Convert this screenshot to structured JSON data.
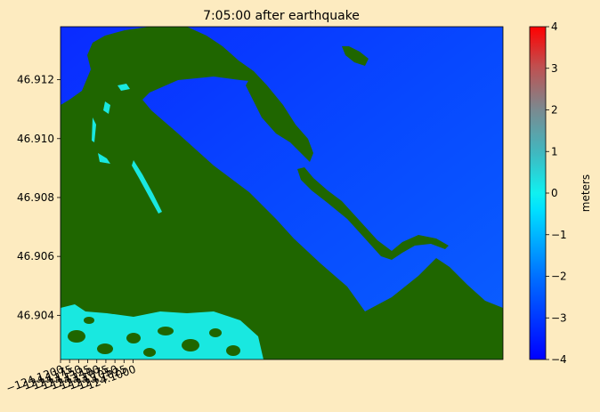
{
  "chart_data": {
    "type": "heatmap",
    "title": "7:05:00 after earthquake",
    "xlabel": "",
    "ylabel": "",
    "xlim": [
      -124.12,
      -123.998
    ],
    "ylim": [
      46.9025,
      46.9138
    ],
    "x_ticks": [
      -124.12,
      -124.1175,
      -124.115,
      -124.1125,
      -124.11,
      -124.1075,
      -124.105,
      -124.1025,
      -124.1
    ],
    "x_tick_labels": [
      "−124.1200",
      "−124.1175",
      "−124.1150",
      "−124.1125",
      "−124.1100",
      "−124.1075",
      "−124.1050",
      "−124.1025",
      "−124.1000"
    ],
    "y_ticks": [
      46.904,
      46.906,
      46.908,
      46.91,
      46.912
    ],
    "y_tick_labels": [
      "46.904",
      "46.906",
      "46.908",
      "46.910",
      "46.912"
    ],
    "colorbar": {
      "label": "meters",
      "min": -4,
      "max": 4,
      "ticks": [
        -4,
        -3,
        -2,
        -1,
        0,
        1,
        2,
        3,
        4
      ],
      "tick_labels": [
        "−4",
        "−3",
        "−2",
        "−1",
        "0",
        "1",
        "2",
        "3",
        "4"
      ],
      "colors": [
        "#0000ff",
        "#0070ff",
        "#00e0ff",
        "#0fe8e8",
        "#5a9aa0",
        "#b06868",
        "#ff0000"
      ]
    },
    "land_color": "#1f6600",
    "water_color": "#0050ff",
    "deep_water_color": "#0030ff",
    "inundation_color": "#19e8e0",
    "regions": {
      "land": "dark green land areas (dry land, masked)",
      "bay": "blue water, about -2 m to -3 m",
      "inundation": "cyan, about 0 m in the southwest corner"
    }
  },
  "colors": {
    "background": "#fdebc0"
  }
}
